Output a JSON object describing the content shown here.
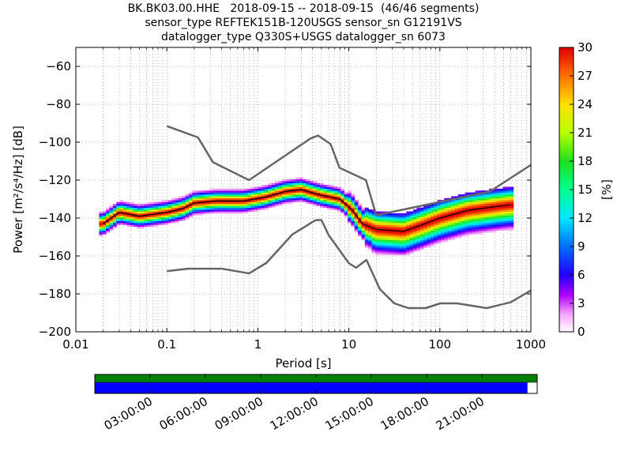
{
  "title_lines": [
    "BK.BK03.00.HHE   2018-09-15 -- 2018-09-15  (46/46 segments)",
    "sensor_type REFTEK151B-120USGS sensor_sn G12191VS",
    "datalogger_type Q330S+USGS datalogger_sn 6073"
  ],
  "colors": {
    "noise_model": "#666666",
    "mean_line": "#000000",
    "coverage_data": "#008000",
    "coverage_gaps": "#0000ff"
  },
  "chart_data": {
    "type": "heatmap",
    "title": "BK.BK03.00.HHE   2018-09-15 -- 2018-09-15  (46/46 segments)",
    "xlabel": "Period [s]",
    "ylabel": "Power [m²/s⁴/Hz] [dB]",
    "xscale": "log",
    "xlim": [
      0.01,
      1000
    ],
    "ylim": [
      -200,
      -50
    ],
    "xtick_labels": [
      "0.01",
      "0.1",
      "1",
      "10",
      "100",
      "1000"
    ],
    "xtick_values": [
      0.01,
      0.1,
      1,
      10,
      100,
      1000
    ],
    "ytick_labels": [
      "−200",
      "−180",
      "−160",
      "−140",
      "−120",
      "−100",
      "−80",
      "−60"
    ],
    "ytick_values": [
      -200,
      -180,
      -160,
      -140,
      -120,
      -100,
      -80,
      -60
    ],
    "grid": true,
    "colorbar": {
      "label": "[%]",
      "range": [
        0,
        30
      ],
      "tick_labels": [
        "0",
        "3",
        "6",
        "9",
        "12",
        "15",
        "18",
        "21",
        "24",
        "27",
        "30"
      ],
      "tick_values": [
        0,
        3,
        6,
        9,
        12,
        15,
        18,
        21,
        24,
        27,
        30
      ]
    },
    "high_noise_model": [
      [
        0.1,
        -91.5
      ],
      [
        0.22,
        -97.5
      ],
      [
        0.32,
        -110.5
      ],
      [
        0.8,
        -120
      ],
      [
        3.8,
        -98
      ],
      [
        4.6,
        -96.5
      ],
      [
        6.3,
        -101
      ],
      [
        7.9,
        -113.5
      ],
      [
        15.4,
        -120
      ],
      [
        20,
        -138.5
      ],
      [
        354.8,
        -126
      ],
      [
        1000,
        -112
      ]
    ],
    "low_noise_model": [
      [
        0.1,
        -168
      ],
      [
        0.17,
        -166.7
      ],
      [
        0.4,
        -166.7
      ],
      [
        0.8,
        -169.2
      ],
      [
        1.24,
        -163.7
      ],
      [
        2.4,
        -148.6
      ],
      [
        4.3,
        -141.1
      ],
      [
        5,
        -141.1
      ],
      [
        6,
        -149
      ],
      [
        10,
        -163.8
      ],
      [
        12,
        -166.2
      ],
      [
        15.6,
        -162.1
      ],
      [
        21.9,
        -177.5
      ],
      [
        31.6,
        -185
      ],
      [
        45,
        -187.5
      ],
      [
        70,
        -187.5
      ],
      [
        101,
        -185
      ],
      [
        154,
        -185
      ],
      [
        328,
        -187.5
      ],
      [
        600,
        -184.4
      ],
      [
        1000,
        -178.2
      ]
    ],
    "mean_psd": [
      [
        0.02,
        -143
      ],
      [
        0.03,
        -137
      ],
      [
        0.05,
        -139
      ],
      [
        0.1,
        -137
      ],
      [
        0.15,
        -135
      ],
      [
        0.2,
        -132
      ],
      [
        0.35,
        -131
      ],
      [
        0.7,
        -131
      ],
      [
        1.2,
        -129
      ],
      [
        2,
        -126
      ],
      [
        3,
        -125
      ],
      [
        5,
        -128
      ],
      [
        8,
        -130
      ],
      [
        11,
        -136
      ],
      [
        14,
        -143
      ],
      [
        20,
        -146
      ],
      [
        40,
        -147
      ],
      [
        60,
        -144
      ],
      [
        100,
        -140
      ],
      [
        200,
        -136
      ],
      [
        400,
        -134
      ],
      [
        600,
        -133
      ]
    ]
  },
  "time_axis": {
    "tick_labels": [
      "03:00:00",
      "06:00:00",
      "09:00:00",
      "12:00:00",
      "15:00:00",
      "18:00:00",
      "21:00:00"
    ],
    "tick_hours": [
      3,
      6,
      9,
      12,
      15,
      18,
      21
    ],
    "range_hours": [
      0,
      24
    ],
    "data_coverage_fraction": 1.0,
    "gap_coverage_fraction": 0.978
  }
}
